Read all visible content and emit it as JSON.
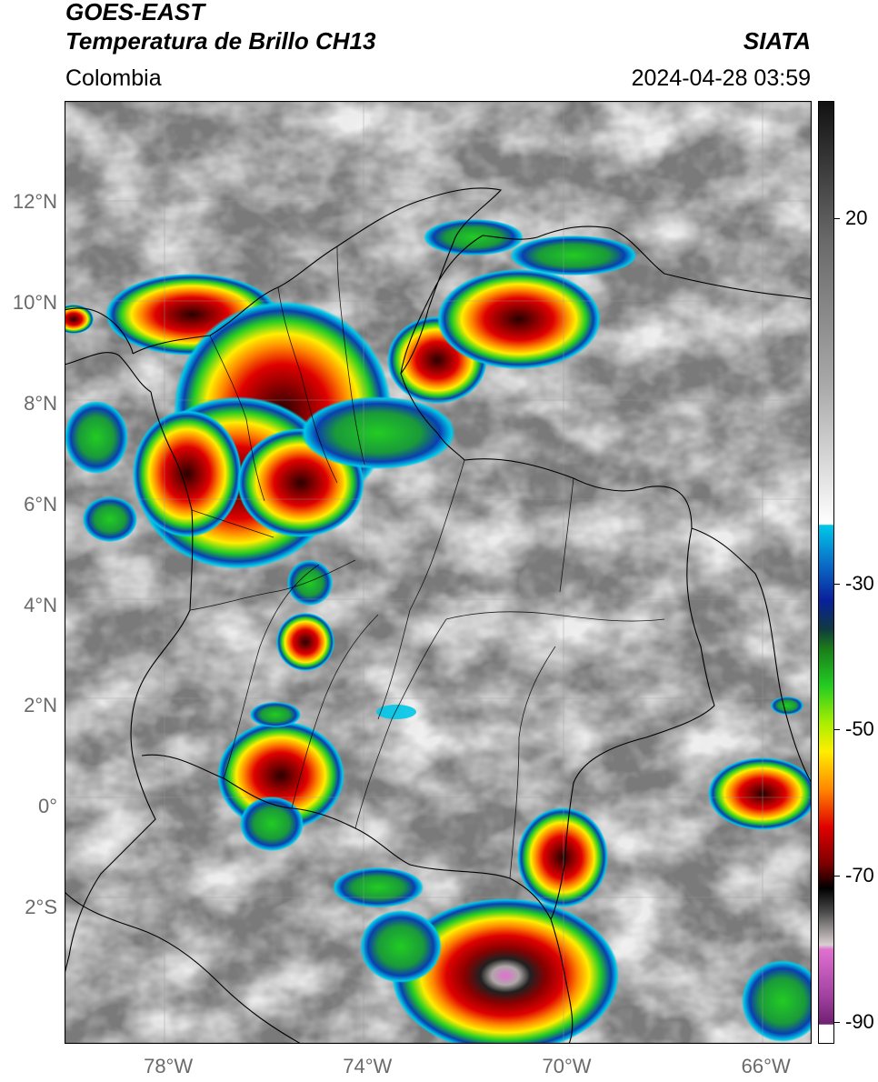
{
  "header": {
    "line1": "GOES-EAST",
    "line2": "Temperatura de Brillo CH13",
    "agency": "SIATA",
    "region": "Colombia",
    "datetime": "2024-04-28 03:59"
  },
  "axes": {
    "lat_labels": [
      {
        "value": 12,
        "text": "12°N"
      },
      {
        "value": 10,
        "text": "10°N"
      },
      {
        "value": 8,
        "text": "8°N"
      },
      {
        "value": 6,
        "text": "6°N"
      },
      {
        "value": 4,
        "text": "4°N"
      },
      {
        "value": 2,
        "text": "2°N"
      },
      {
        "value": 0,
        "text": "0°"
      },
      {
        "value": -2,
        "text": "2°S"
      }
    ],
    "lon_labels": [
      {
        "value": -78,
        "text": "78°W"
      },
      {
        "value": -74,
        "text": "74°W"
      },
      {
        "value": -70,
        "text": "70°W"
      },
      {
        "value": -66,
        "text": "66°W"
      }
    ],
    "lon_range": [
      -80.1,
      -65.1
    ],
    "lat_range": [
      -4.7,
      14.0
    ]
  },
  "colorbar": {
    "labels": [
      {
        "value": 20,
        "text": "20"
      },
      {
        "value": -30,
        "text": "-30"
      },
      {
        "value": -50,
        "text": "-50"
      },
      {
        "value": -70,
        "text": "-70"
      },
      {
        "value": -90,
        "text": "-90"
      }
    ],
    "colors": {
      "warm": "#1a1a1a",
      "mid": "#9a9a9a",
      "cool": "#ffffff",
      "cyan": "#00c8e8",
      "blue": "#0a1f9a",
      "green": "#22cc22",
      "yellow": "#ffee00",
      "orange": "#ff8800",
      "red": "#e00000",
      "darkred": "#550000",
      "black": "#000000",
      "grey": "#b0a8a8",
      "pink": "#e070d0",
      "purple": "#802080"
    }
  }
}
